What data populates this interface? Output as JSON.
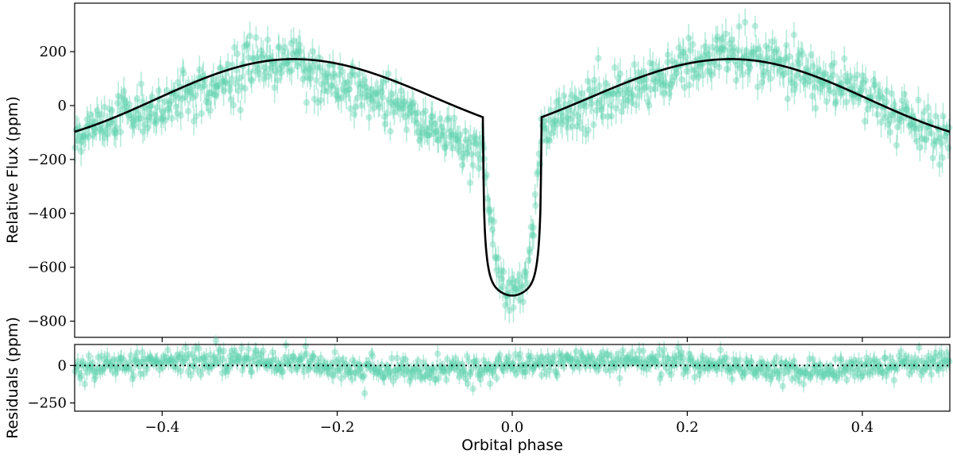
{
  "chart_data": [
    {
      "panel": "top",
      "type": "scatter",
      "title": "",
      "xlabel": "",
      "ylabel": "Relative Flux (ppm)",
      "xlim": [
        -0.5,
        0.5
      ],
      "ylim": [
        -860,
        380
      ],
      "yticks": [
        200,
        0,
        -200,
        -400,
        -600,
        -800
      ],
      "ytick_labels": [
        "200",
        "0",
        "−200",
        "−400",
        "−600",
        "−800"
      ],
      "xticks": [
        -0.4,
        -0.2,
        0.0,
        0.2,
        0.4
      ],
      "grid": false,
      "series": [
        {
          "name": "data",
          "style": "points-with-errorbars",
          "color": "#5fd3b0",
          "trend": {
            "phase": [
              -0.5,
              -0.4,
              -0.3,
              -0.25,
              -0.2,
              -0.1,
              -0.05,
              -0.033,
              -0.025,
              -0.015,
              0.0,
              0.015,
              0.025,
              0.033,
              0.05,
              0.1,
              0.2,
              0.25,
              0.3,
              0.4,
              0.5
            ],
            "flux": [
              -110,
              -10,
              150,
              170,
              90,
              -60,
              -150,
              -180,
              -420,
              -650,
              -710,
              -650,
              -420,
              -120,
              -60,
              20,
              150,
              200,
              160,
              30,
              -130
            ]
          },
          "typical_error": 45
        },
        {
          "name": "model",
          "style": "line",
          "color": "#000000",
          "amplitude": 175,
          "transit_depth": 605,
          "transit_half_width": 0.033,
          "minimum": -705
        }
      ]
    },
    {
      "panel": "bottom",
      "type": "scatter",
      "xlabel": "Orbital phase",
      "ylabel": "Residuals (ppm)",
      "xlim": [
        -0.5,
        0.5
      ],
      "ylim": [
        -305,
        140
      ],
      "yticks": [
        0,
        -250
      ],
      "ytick_labels": [
        "0",
        "−250"
      ],
      "xticks": [
        -0.4,
        -0.2,
        0.0,
        0.2,
        0.4
      ],
      "xtick_labels": [
        "−0.4",
        "−0.2",
        "0.0",
        "0.2",
        "0.4"
      ],
      "zero_line": "dotted black",
      "series": [
        {
          "name": "residuals",
          "style": "points-with-errorbars",
          "color": "#5fd3b0",
          "typical_error": 45,
          "scatter_range": [
            -120,
            100
          ]
        }
      ]
    }
  ],
  "colors": {
    "points": "#5fd3b0",
    "model": "#000000",
    "axes": "#000000"
  }
}
